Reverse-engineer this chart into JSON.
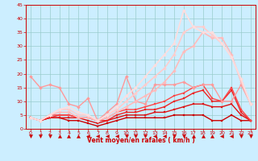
{
  "bg_color": "#cceeff",
  "grid_color": "#99cccc",
  "xlabel": "Vent moyen/en rafales ( km/h )",
  "xlim": [
    -0.5,
    23.5
  ],
  "ylim": [
    0,
    45
  ],
  "yticks": [
    0,
    5,
    10,
    15,
    20,
    25,
    30,
    35,
    40,
    45
  ],
  "xticks": [
    0,
    1,
    2,
    3,
    4,
    5,
    6,
    7,
    8,
    9,
    10,
    11,
    12,
    13,
    14,
    15,
    16,
    17,
    18,
    19,
    20,
    21,
    22,
    23
  ],
  "lines": [
    {
      "x": [
        0,
        1,
        2,
        3,
        4,
        5,
        6,
        7,
        8,
        9,
        10,
        11,
        12,
        13,
        14,
        15,
        16,
        17,
        18,
        19,
        20,
        21,
        22,
        23
      ],
      "y": [
        4,
        3,
        4,
        4,
        3,
        3,
        2,
        1,
        2,
        3,
        4,
        4,
        4,
        4,
        4,
        5,
        5,
        5,
        5,
        3,
        3,
        5,
        3,
        3
      ],
      "color": "#cc0000",
      "lw": 1.0,
      "marker": "s",
      "ms": 1.8
    },
    {
      "x": [
        0,
        1,
        2,
        3,
        4,
        5,
        6,
        7,
        8,
        9,
        10,
        11,
        12,
        13,
        14,
        15,
        16,
        17,
        18,
        19,
        20,
        21,
        22,
        23
      ],
      "y": [
        4,
        3,
        4,
        4,
        4,
        4,
        3,
        2,
        3,
        4,
        5,
        5,
        5,
        6,
        6,
        7,
        8,
        9,
        9,
        8,
        8,
        9,
        5,
        3
      ],
      "color": "#dd1111",
      "lw": 1.0,
      "marker": "s",
      "ms": 1.8
    },
    {
      "x": [
        0,
        1,
        2,
        3,
        4,
        5,
        6,
        7,
        8,
        9,
        10,
        11,
        12,
        13,
        14,
        15,
        16,
        17,
        18,
        19,
        20,
        21,
        22,
        23
      ],
      "y": [
        4,
        3,
        4,
        5,
        5,
        4,
        4,
        3,
        3,
        5,
        6,
        6,
        7,
        7,
        8,
        10,
        11,
        13,
        14,
        10,
        10,
        14,
        6,
        3
      ],
      "color": "#ee2222",
      "lw": 1.0,
      "marker": "s",
      "ms": 1.8
    },
    {
      "x": [
        0,
        1,
        2,
        3,
        4,
        5,
        6,
        7,
        8,
        9,
        10,
        11,
        12,
        13,
        14,
        15,
        16,
        17,
        18,
        19,
        20,
        21,
        22,
        23
      ],
      "y": [
        4,
        3,
        5,
        5,
        5,
        4,
        4,
        3,
        4,
        6,
        7,
        7,
        8,
        9,
        10,
        12,
        13,
        15,
        16,
        11,
        10,
        15,
        7,
        3
      ],
      "color": "#ff4444",
      "lw": 1.0,
      "marker": "s",
      "ms": 1.8
    },
    {
      "x": [
        0,
        1,
        2,
        3,
        4,
        5,
        6,
        7,
        8,
        9,
        10,
        11,
        12,
        13,
        14,
        15,
        16,
        17,
        18,
        19,
        20,
        21,
        22,
        23
      ],
      "y": [
        19,
        15,
        16,
        15,
        9,
        8,
        11,
        3,
        6,
        9,
        19,
        10,
        9,
        16,
        16,
        16,
        17,
        15,
        16,
        16,
        10,
        10,
        16,
        9
      ],
      "color": "#ff9999",
      "lw": 1.0,
      "marker": "D",
      "ms": 2.0
    },
    {
      "x": [
        0,
        1,
        2,
        3,
        4,
        5,
        6,
        7,
        8,
        9,
        10,
        11,
        12,
        13,
        14,
        15,
        16,
        17,
        18,
        19,
        20,
        21,
        22,
        23
      ],
      "y": [
        4,
        3,
        5,
        6,
        6,
        4,
        4,
        3,
        4,
        6,
        8,
        10,
        12,
        14,
        17,
        21,
        28,
        30,
        35,
        33,
        33,
        27,
        17,
        9
      ],
      "color": "#ffbbbb",
      "lw": 1.2,
      "marker": "D",
      "ms": 2.0
    },
    {
      "x": [
        0,
        1,
        2,
        3,
        4,
        5,
        6,
        7,
        8,
        9,
        10,
        11,
        12,
        13,
        14,
        15,
        16,
        17,
        18,
        19,
        20,
        21,
        22,
        23
      ],
      "y": [
        4,
        3,
        5,
        7,
        7,
        5,
        5,
        3,
        5,
        7,
        10,
        13,
        16,
        19,
        22,
        27,
        35,
        37,
        37,
        34,
        31,
        26,
        18,
        9
      ],
      "color": "#ffcccc",
      "lw": 1.2,
      "marker": "D",
      "ms": 2.0
    },
    {
      "x": [
        0,
        1,
        2,
        3,
        4,
        5,
        6,
        7,
        8,
        9,
        10,
        11,
        12,
        13,
        14,
        15,
        16,
        17,
        18,
        19,
        20,
        21,
        22,
        23
      ],
      "y": [
        4,
        3,
        5,
        7,
        8,
        6,
        5,
        3,
        5,
        8,
        12,
        15,
        19,
        23,
        27,
        31,
        43,
        37,
        35,
        35,
        31,
        26,
        18,
        9
      ],
      "color": "#ffdddd",
      "lw": 1.2,
      "marker": "D",
      "ms": 2.0
    }
  ],
  "arrow_symbols": [
    "v",
    "v",
    "v",
    "^",
    "^",
    "^",
    "<",
    "<",
    "<",
    "<",
    "v",
    "v",
    "v",
    "<",
    "<",
    "v",
    "v",
    "^",
    "^",
    "^",
    "<",
    "<",
    "v",
    "v"
  ]
}
